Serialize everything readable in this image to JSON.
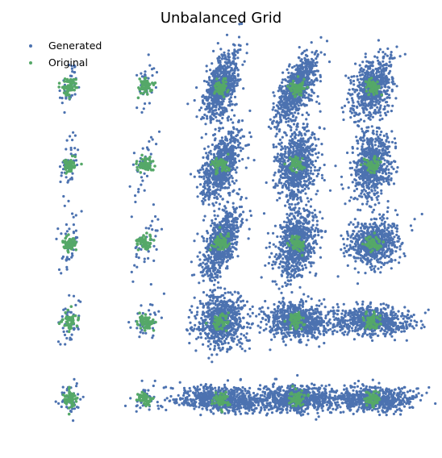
{
  "chart_data": {
    "type": "scatter",
    "title": "Unbalanced Grid",
    "xlabel": "",
    "ylabel": "",
    "axes_visible": false,
    "grid": false,
    "legend": {
      "placement": "top-left",
      "entries": [
        "Generated",
        "Original"
      ]
    },
    "xlim": [
      -2.6,
      2.6
    ],
    "ylim": [
      -2.6,
      2.6
    ],
    "grid_centers": [
      -2,
      -1,
      0,
      1,
      2
    ],
    "series": [
      {
        "name": "Generated",
        "color": "#4c72b0",
        "description_note": "dense blue point cloud around each grid center",
        "clusters": [
          {
            "cx": -2,
            "cy": 2,
            "n": 45,
            "sx": 0.06,
            "sy": 0.18,
            "rho": 0.3
          },
          {
            "cx": -1,
            "cy": 2,
            "n": 40,
            "sx": 0.07,
            "sy": 0.17,
            "rho": 0.5
          },
          {
            "cx": 0,
            "cy": 2,
            "n": 700,
            "sx": 0.11,
            "sy": 0.22,
            "rho": 0.55
          },
          {
            "cx": 1,
            "cy": 2,
            "n": 700,
            "sx": 0.13,
            "sy": 0.22,
            "rho": 0.65
          },
          {
            "cx": 2,
            "cy": 2,
            "n": 650,
            "sx": 0.13,
            "sy": 0.2,
            "rho": 0.35
          },
          {
            "cx": -2,
            "cy": 1,
            "n": 45,
            "sx": 0.08,
            "sy": 0.2,
            "rho": 0.5
          },
          {
            "cx": -1,
            "cy": 1,
            "n": 40,
            "sx": 0.08,
            "sy": 0.2,
            "rho": 0.6
          },
          {
            "cx": 0,
            "cy": 1,
            "n": 700,
            "sx": 0.13,
            "sy": 0.22,
            "rho": 0.55
          },
          {
            "cx": 1,
            "cy": 1,
            "n": 700,
            "sx": 0.13,
            "sy": 0.25,
            "rho": 0.15
          },
          {
            "cx": 2,
            "cy": 1,
            "n": 650,
            "sx": 0.13,
            "sy": 0.22,
            "rho": 0.25
          },
          {
            "cx": -2,
            "cy": 0,
            "n": 45,
            "sx": 0.07,
            "sy": 0.2,
            "rho": 0.3
          },
          {
            "cx": -1,
            "cy": 0,
            "n": 40,
            "sx": 0.1,
            "sy": 0.2,
            "rho": 0.5
          },
          {
            "cx": 0,
            "cy": 0,
            "n": 700,
            "sx": 0.13,
            "sy": 0.23,
            "rho": 0.6
          },
          {
            "cx": 1,
            "cy": 0,
            "n": 700,
            "sx": 0.14,
            "sy": 0.23,
            "rho": 0.3
          },
          {
            "cx": 2,
            "cy": 0,
            "n": 650,
            "sx": 0.17,
            "sy": 0.15,
            "rho": 0.1
          },
          {
            "cx": -2,
            "cy": -1,
            "n": 45,
            "sx": 0.08,
            "sy": 0.15,
            "rho": 0.0
          },
          {
            "cx": -1,
            "cy": -1,
            "n": 40,
            "sx": 0.1,
            "sy": 0.15,
            "rho": 0.3
          },
          {
            "cx": 0,
            "cy": -1,
            "n": 700,
            "sx": 0.15,
            "sy": 0.17,
            "rho": 0.0
          },
          {
            "cx": 1,
            "cy": -1,
            "n": 700,
            "sx": 0.22,
            "sy": 0.11,
            "rho": -0.1
          },
          {
            "cx": 2,
            "cy": -1,
            "n": 650,
            "sx": 0.26,
            "sy": 0.09,
            "rho": -0.1
          },
          {
            "cx": -2,
            "cy": -2,
            "n": 45,
            "sx": 0.08,
            "sy": 0.12,
            "rho": 0.0
          },
          {
            "cx": -1,
            "cy": -2,
            "n": 40,
            "sx": 0.12,
            "sy": 0.08,
            "rho": 0.0
          },
          {
            "cx": 0,
            "cy": -2,
            "n": 700,
            "sx": 0.3,
            "sy": 0.08,
            "rho": -0.2
          },
          {
            "cx": 1,
            "cy": -2,
            "n": 700,
            "sx": 0.26,
            "sy": 0.08,
            "rho": -0.05
          },
          {
            "cx": 2,
            "cy": -2,
            "n": 650,
            "sx": 0.27,
            "sy": 0.08,
            "rho": -0.05
          }
        ]
      },
      {
        "name": "Original",
        "color": "#55a868",
        "description_note": "compact green blob at each grid center",
        "clusters_per_center": 1,
        "n_per_center": 60,
        "spread": 0.05
      }
    ]
  }
}
